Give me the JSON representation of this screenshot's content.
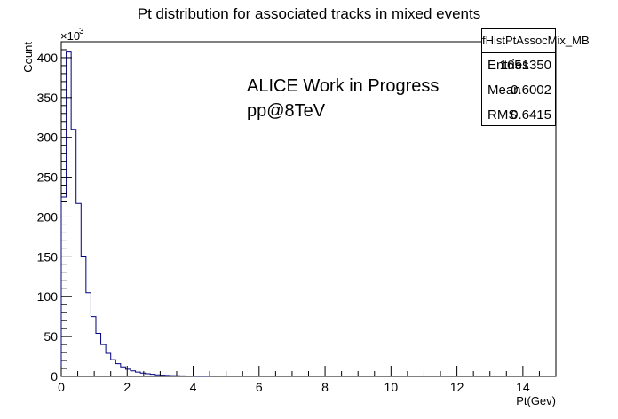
{
  "chart_data": {
    "type": "bar",
    "title": "Pt distribution for associated tracks in mixed events",
    "xlabel": "Pt(Gev)",
    "ylabel": "Count",
    "y_multiplier": "×10",
    "y_multiplier_exp": "3",
    "xlim": [
      0,
      15
    ],
    "ylim": [
      0,
      420
    ],
    "x_ticks": [
      0,
      2,
      4,
      6,
      8,
      10,
      12,
      14
    ],
    "y_ticks": [
      0,
      50,
      100,
      150,
      200,
      250,
      300,
      350,
      400
    ],
    "bin_width": 0.15,
    "values": [
      225,
      407,
      310,
      217,
      151,
      105,
      75,
      54,
      40,
      29,
      21,
      16,
      12,
      9,
      7,
      5.4,
      4.2,
      3.3,
      2.6,
      2.0,
      1.6,
      1.25,
      1.0,
      0.8,
      0.65,
      0.5,
      0.4,
      0.32,
      0.26,
      0.2
    ],
    "grid": false,
    "stats": {
      "name": "fHistPtAssocMix_MB",
      "entries_label": "Entries",
      "entries": "1651350",
      "mean_label": "Mean",
      "mean": "0.6002",
      "rms_label": "RMS",
      "rms": "0.6415"
    },
    "annotations": [
      "ALICE Work in Progress",
      "pp@8TeV"
    ],
    "line_color": "#00007f"
  }
}
